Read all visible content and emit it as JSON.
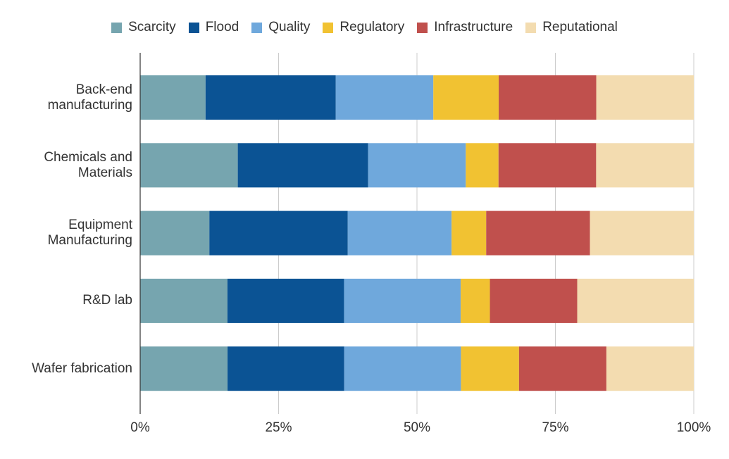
{
  "chart_data": {
    "type": "bar",
    "orientation": "horizontal",
    "stacked": "percent",
    "categories": [
      "Back-end\nmanufacturing",
      "Chemicals and\nMaterials",
      "Equipment\nManufacturing",
      "R&D lab",
      "Wafer fabrication"
    ],
    "series": [
      {
        "name": "Scarcity",
        "color": "#76a5af",
        "values": [
          11.8,
          17.6,
          12.5,
          15.8,
          15.8
        ]
      },
      {
        "name": "Flood",
        "color": "#0b5394",
        "values": [
          23.5,
          23.5,
          25.0,
          21.1,
          21.1
        ]
      },
      {
        "name": "Quality",
        "color": "#6fa8dc",
        "values": [
          17.6,
          17.6,
          18.75,
          21.1,
          21.1
        ]
      },
      {
        "name": "Regulatory",
        "color": "#f1c232",
        "values": [
          11.8,
          5.9,
          6.25,
          5.3,
          10.5
        ]
      },
      {
        "name": "Infrastructure",
        "color": "#c0504d",
        "values": [
          17.6,
          17.6,
          18.75,
          15.8,
          15.8
        ]
      },
      {
        "name": "Reputational",
        "color": "#f3dcb0",
        "values": [
          17.6,
          17.6,
          18.75,
          21.1,
          15.8
        ]
      }
    ],
    "xlim": [
      0,
      100
    ],
    "xticks": [
      "0%",
      "25%",
      "50%",
      "75%",
      "100%"
    ],
    "grid": "vertical",
    "legend": "top"
  }
}
